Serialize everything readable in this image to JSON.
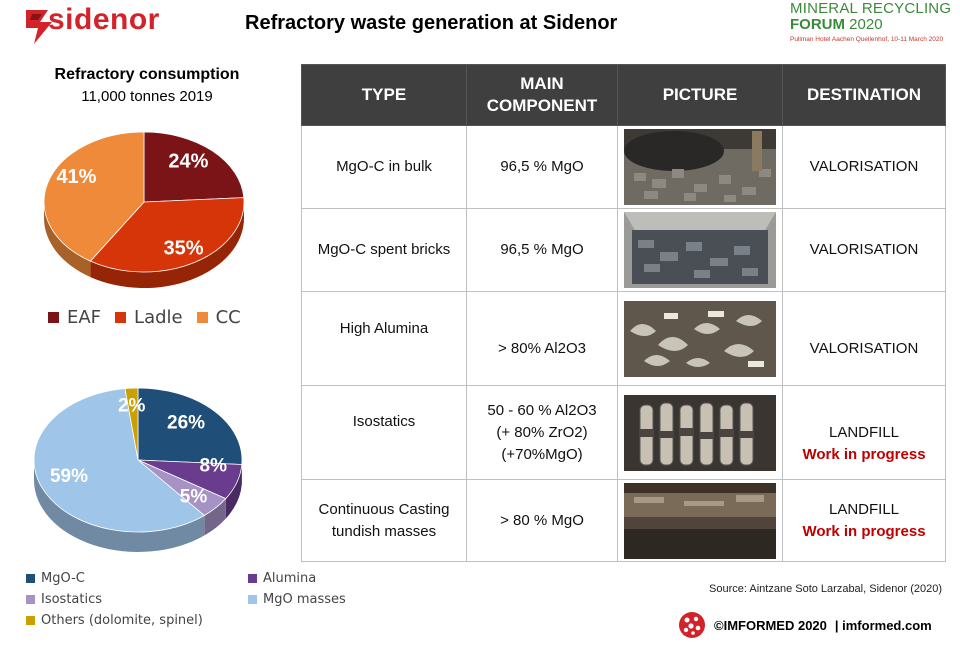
{
  "header": {
    "brand": "sidenor",
    "title": "Refractory  waste generation at Sidenor",
    "forum": {
      "line1": "MINERAL RECYCLING",
      "line2a": "FORUM",
      "line2b": "2020",
      "line3": "Pullman Hotel Aachen Quellenhof, 10-11 March 2020"
    }
  },
  "consumption": {
    "title": "Refractory consumption",
    "subtitle": "11,000 tonnes 2019"
  },
  "chart_data": [
    {
      "type": "pie",
      "categories": [
        "EAF",
        "Ladle",
        "CC"
      ],
      "values": [
        24,
        35,
        41
      ],
      "labels": [
        "24%",
        "35%",
        "41%"
      ],
      "colors": [
        "#7b1416",
        "#d6350a",
        "#ef8a3a"
      ],
      "legend": "bottom"
    },
    {
      "type": "pie",
      "categories": [
        "MgO-C",
        "Alumina",
        "Isostatics",
        "MgO masses",
        "Others (dolomite, spinel)"
      ],
      "values": [
        26,
        8,
        5,
        59,
        2
      ],
      "labels": [
        "26%",
        "8%",
        "5%",
        "59%",
        "2%"
      ],
      "colors": [
        "#1f4e79",
        "#6a3c8e",
        "#a692c4",
        "#9fc5e8",
        "#c9a000"
      ],
      "legend": "bottom"
    }
  ],
  "legend_bottom": {
    "mgoc": "MgO-C",
    "alumina": "Alumina",
    "isostatics": "Isostatics",
    "mgo_masses": "MgO masses",
    "others": "Others (dolomite, spinel)"
  },
  "table": {
    "headers": [
      "TYPE",
      "MAIN COMPONENT",
      "PICTURE",
      "DESTINATION"
    ],
    "rows": [
      {
        "type": "MgO-C in bulk",
        "component": "96,5 % MgO",
        "destination": "VALORISATION",
        "note": ""
      },
      {
        "type": "MgO-C spent bricks",
        "component": "96,5 % MgO",
        "destination": "VALORISATION",
        "note": ""
      },
      {
        "type": "High Alumina",
        "component": "> 80% Al2O3",
        "destination": "VALORISATION",
        "note": ""
      },
      {
        "type": "Isostatics",
        "component_l1": "50 - 60 % Al2O3",
        "component_l2": "(+ 80% ZrO2)",
        "component_l3": "(+70%MgO)",
        "destination": "LANDFILL",
        "note": "Work in progress"
      },
      {
        "type_l1": "Continuous Casting",
        "type_l2": "tundish masses",
        "component": "> 80 % MgO",
        "destination": "LANDFILL",
        "note": "Work in progress"
      }
    ]
  },
  "source": "Source: Aintzane Soto Larzabal, Sidenor (2020)",
  "footer": {
    "copyright": "©IMFORMED 2020",
    "site": "| imformed.com"
  }
}
